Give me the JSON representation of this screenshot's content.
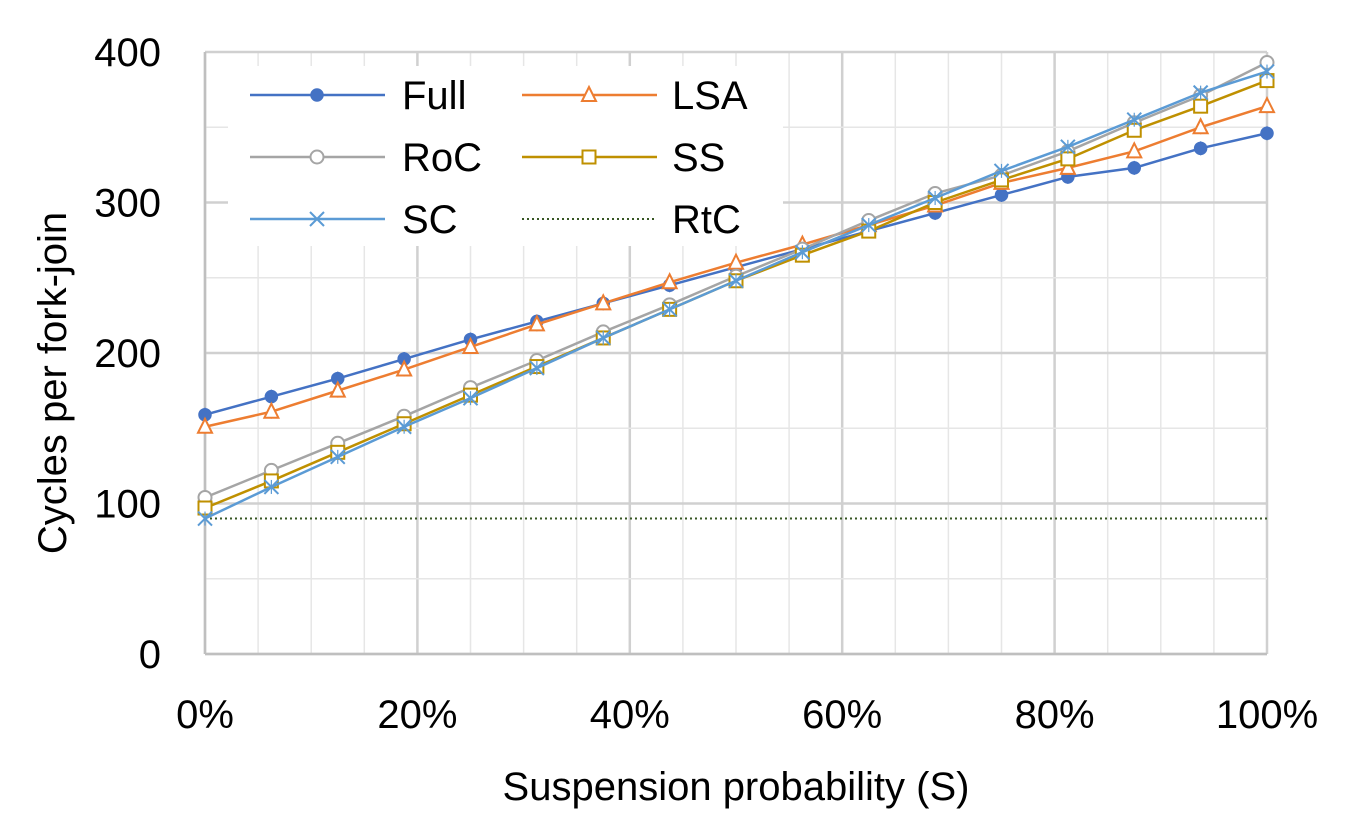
{
  "chart_data": {
    "type": "line",
    "title": "",
    "xlabel": "Suspension probability (S)",
    "ylabel": "Cycles per fork-join",
    "xlim": [
      0,
      100
    ],
    "ylim": [
      0,
      400
    ],
    "x_unit": "%",
    "x_ticks": [
      "0%",
      "20%",
      "40%",
      "60%",
      "80%",
      "100%"
    ],
    "y_ticks": [
      "0",
      "100",
      "200",
      "300",
      "400"
    ],
    "grid": "major and minor",
    "legend_position": "top-left",
    "x": [
      0,
      6.25,
      12.5,
      18.75,
      25,
      31.25,
      37.5,
      43.75,
      50,
      56.25,
      62.5,
      68.75,
      75,
      81.25,
      87.5,
      93.75,
      100
    ],
    "series": [
      {
        "name": "Full",
        "color": "#4472C4",
        "marker": "filled-circle",
        "values": [
          159,
          171,
          183,
          196,
          209,
          221,
          233,
          245,
          257,
          269,
          281,
          293,
          305,
          317,
          323,
          336,
          346
        ]
      },
      {
        "name": "LSA",
        "color": "#ED7D31",
        "marker": "open-triangle",
        "values": [
          151,
          161,
          175,
          189,
          204,
          219,
          233,
          247,
          260,
          272,
          285,
          298,
          313,
          323,
          334,
          350,
          364
        ]
      },
      {
        "name": "RoC",
        "color": "#A5A5A5",
        "marker": "open-circle",
        "values": [
          104,
          122,
          140,
          158,
          177,
          195,
          214,
          232,
          251,
          269,
          288,
          306,
          318,
          334,
          353,
          371,
          393
        ]
      },
      {
        "name": "SS",
        "color": "#BF9000",
        "marker": "open-square",
        "values": [
          97,
          115,
          134,
          153,
          172,
          191,
          210,
          229,
          248,
          265,
          281,
          300,
          315,
          329,
          348,
          364,
          381
        ]
      },
      {
        "name": "SC",
        "color": "#5B9BD5",
        "marker": "x",
        "values": [
          90,
          111,
          131,
          151,
          170,
          190,
          210,
          229,
          248,
          267,
          285,
          303,
          321,
          337,
          355,
          373,
          387
        ]
      },
      {
        "name": "RtC",
        "color": "#375623",
        "marker": "none",
        "style": "dotted",
        "values": [
          90,
          90,
          90,
          90,
          90,
          90,
          90,
          90,
          90,
          90,
          90,
          90,
          90,
          90,
          90,
          90,
          90
        ]
      }
    ],
    "legend_order": [
      "Full",
      "LSA",
      "RoC",
      "SS",
      "SC",
      "RtC"
    ]
  }
}
